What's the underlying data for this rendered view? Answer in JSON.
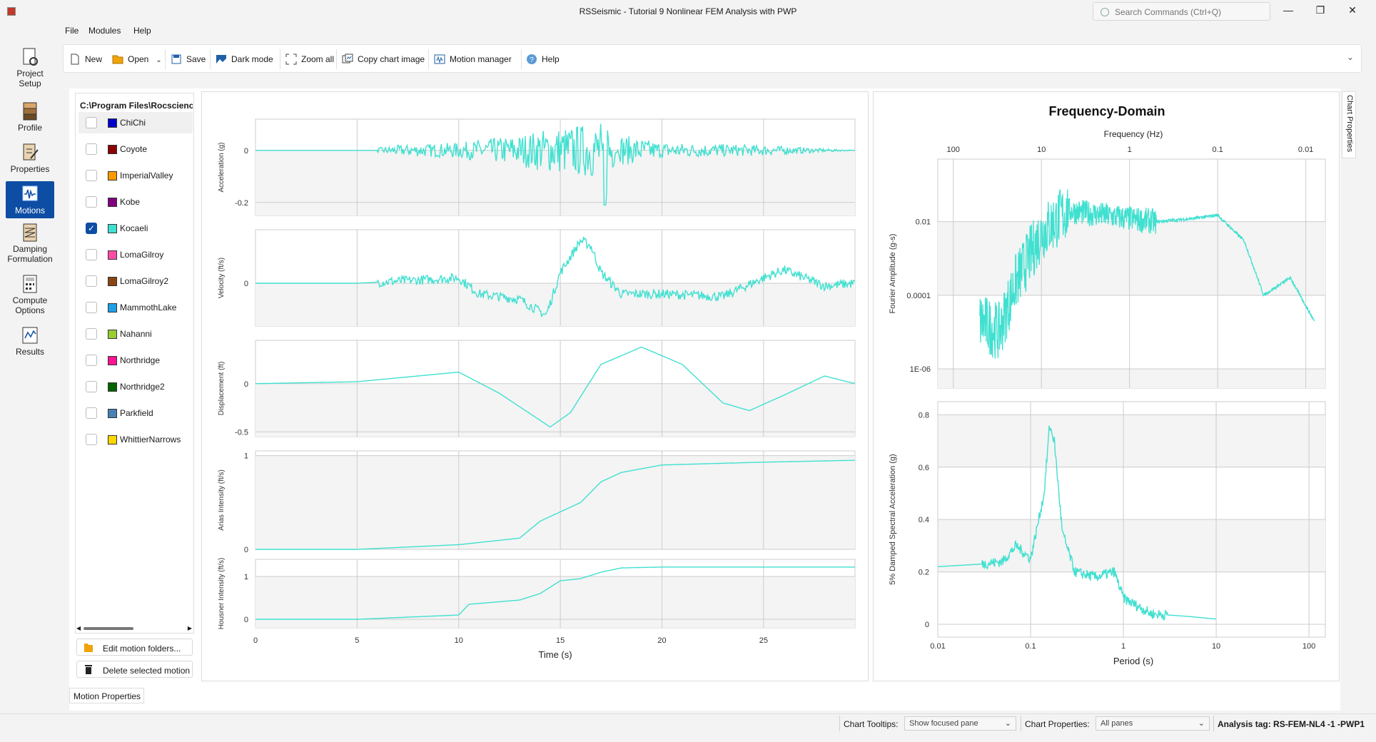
{
  "window": {
    "title": "RSSeismic - Tutorial 9 Nonlinear FEM Analysis with PWP",
    "search_placeholder": "Search Commands (Ctrl+Q)",
    "minimize": "—",
    "maximize": "❐",
    "close": "✕"
  },
  "menu": [
    "File",
    "Modules",
    "Help"
  ],
  "sidebar": [
    {
      "label": "Project\nSetup",
      "icon": "project-setup-icon"
    },
    {
      "label": "Profile",
      "icon": "profile-icon"
    },
    {
      "label": "Properties",
      "icon": "properties-icon"
    },
    {
      "label": "Motions",
      "icon": "motions-icon",
      "active": true
    },
    {
      "label": "Damping\nFormulation",
      "icon": "damping-icon"
    },
    {
      "label": "Compute\nOptions",
      "icon": "compute-icon"
    },
    {
      "label": "Results",
      "icon": "results-icon"
    }
  ],
  "toolbar": {
    "new": "New",
    "open": "Open",
    "save": "Save",
    "dark_mode": "Dark mode",
    "zoom_all": "Zoom all",
    "copy_chart": "Copy chart image",
    "motion_manager": "Motion manager",
    "help": "Help"
  },
  "motions": {
    "path": "C:\\Program Files\\Rocscience",
    "items": [
      {
        "name": "ChiChi",
        "color": "#0000cc",
        "checked": false
      },
      {
        "name": "Coyote",
        "color": "#8b0000",
        "checked": false
      },
      {
        "name": "ImperialValley",
        "color": "#ff9900",
        "checked": false
      },
      {
        "name": "Kobe",
        "color": "#800080",
        "checked": false
      },
      {
        "name": "Kocaeli",
        "color": "#40e0d0",
        "checked": true
      },
      {
        "name": "LomaGilroy",
        "color": "#ff4da6",
        "checked": false
      },
      {
        "name": "LomaGilroy2",
        "color": "#8b4513",
        "checked": false
      },
      {
        "name": "MammothLake",
        "color": "#1ea0e6",
        "checked": false
      },
      {
        "name": "Nahanni",
        "color": "#9acd32",
        "checked": false
      },
      {
        "name": "Northridge",
        "color": "#ff1493",
        "checked": false
      },
      {
        "name": "Northridge2",
        "color": "#006400",
        "checked": false
      },
      {
        "name": "Parkfield",
        "color": "#4682b4",
        "checked": false
      },
      {
        "name": "WhittierNarrows",
        "color": "#ffd700",
        "checked": false
      }
    ],
    "edit_button": "Edit motion folders...",
    "delete_button": "Delete selected motion",
    "tab_label": "Motion Properties"
  },
  "time_charts": {
    "xlabel": "Time (s)",
    "x_ticks": [
      "0",
      "5",
      "10",
      "15",
      "20",
      "25"
    ],
    "panels": [
      {
        "ylabel": "Acceleration (g)",
        "y_ticks": [
          "0",
          "-0.2"
        ]
      },
      {
        "ylabel": "Velocity (ft/s)",
        "y_ticks": [
          "0"
        ]
      },
      {
        "ylabel": "Displacement (ft)",
        "y_ticks": [
          "0",
          "-0.5"
        ]
      },
      {
        "ylabel": "Arias Intensity (ft/s)",
        "y_ticks": [
          "1",
          "0"
        ]
      },
      {
        "ylabel": "Housner Intensity (ft/s)",
        "y_ticks": [
          "1",
          "0"
        ]
      }
    ]
  },
  "freq_chart": {
    "title": "Frequency-Domain",
    "top_xlabel": "Frequency (Hz)",
    "top_x_ticks": [
      "100",
      "10",
      "1",
      "0.1",
      "0.01"
    ],
    "ylabel": "Fourier Amplitude (g-s)",
    "y_ticks": [
      "0.01",
      "0.0001",
      "1E-06"
    ]
  },
  "spectrum_chart": {
    "xlabel": "Period (s)",
    "x_ticks": [
      "0.01",
      "0.1",
      "1",
      "10",
      "100"
    ],
    "ylabel": "5% Damped Spectral Acceleration (g)",
    "y_ticks": [
      "0.8",
      "0.6",
      "0.4",
      "0.2",
      "0"
    ]
  },
  "chart_data": [
    {
      "type": "line",
      "ylabel": "Acceleration (g)",
      "xlabel": "Time (s)",
      "xlim": [
        0,
        29.5
      ],
      "ylim": [
        -0.25,
        0.12
      ],
      "x": [
        0,
        5,
        7,
        10,
        13,
        14,
        15,
        16,
        17,
        17.2,
        18,
        20,
        25,
        29.5
      ],
      "series": [
        {
          "values": [
            0,
            0,
            0.02,
            0.03,
            0.06,
            0.08,
            0.09,
            0.1,
            0.11,
            -0.21,
            0.06,
            0.03,
            0.02,
            0
          ]
        }
      ]
    },
    {
      "type": "line",
      "ylabel": "Velocity (ft/s)",
      "xlabel": "Time (s)",
      "xlim": [
        0,
        29.5
      ],
      "x": [
        0,
        5,
        10,
        11,
        13,
        14.3,
        15,
        16,
        16.5,
        17,
        18,
        20,
        23,
        25,
        26,
        28,
        29.5
      ],
      "series": [
        {
          "values": [
            0,
            0,
            0.1,
            -0.2,
            -0.3,
            -0.6,
            0.2,
            0.8,
            0.7,
            0.2,
            -0.2,
            -0.2,
            -0.25,
            0.1,
            0.25,
            -0.05,
            0
          ]
        }
      ]
    },
    {
      "type": "line",
      "ylabel": "Displacement (ft)",
      "xlabel": "Time (s)",
      "xlim": [
        0,
        29.5
      ],
      "ylim": [
        -0.55,
        0.45
      ],
      "x": [
        0,
        5,
        10,
        12,
        14.5,
        15.5,
        17,
        19,
        21,
        23,
        24.3,
        26,
        28,
        29.5
      ],
      "series": [
        {
          "values": [
            0,
            0.02,
            0.12,
            -0.1,
            -0.45,
            -0.3,
            0.2,
            0.38,
            0.2,
            -0.2,
            -0.28,
            -0.12,
            0.08,
            0
          ]
        }
      ]
    },
    {
      "type": "line",
      "ylabel": "Arias Intensity (ft/s)",
      "xlabel": "Time (s)",
      "xlim": [
        0,
        29.5
      ],
      "ylim": [
        0,
        1
      ],
      "x": [
        0,
        5,
        10,
        13,
        14,
        15,
        16,
        17,
        18,
        20,
        25,
        29.5
      ],
      "series": [
        {
          "values": [
            0,
            0,
            0.05,
            0.12,
            0.3,
            0.4,
            0.5,
            0.72,
            0.82,
            0.9,
            0.93,
            0.95
          ]
        }
      ]
    },
    {
      "type": "line",
      "ylabel": "Housner Intensity (ft/s)",
      "xlabel": "Time (s)",
      "xlim": [
        0,
        29.5
      ],
      "ylim": [
        0,
        1.3
      ],
      "x": [
        0,
        5,
        10,
        10.5,
        13,
        14,
        15,
        16,
        17,
        18,
        20,
        29.5
      ],
      "series": [
        {
          "values": [
            0,
            0,
            0.1,
            0.35,
            0.45,
            0.6,
            0.9,
            0.95,
            1.1,
            1.2,
            1.22,
            1.22
          ]
        }
      ]
    },
    {
      "type": "line",
      "title": "Frequency-Domain",
      "xlabel": "Frequency (Hz)",
      "ylabel": "Fourier Amplitude (g-s)",
      "x_scale": "log",
      "x": [
        50,
        30,
        20,
        10,
        5,
        2,
        1,
        0.5,
        0.2,
        0.1,
        0.05,
        0.03,
        0.015,
        0.008
      ],
      "series": [
        {
          "values": [
            2e-05,
            1e-05,
            0.0002,
            0.005,
            0.02,
            0.015,
            0.012,
            0.01,
            0.012,
            0.015,
            0.003,
            0.0001,
            0.0003,
            2e-05
          ]
        }
      ]
    },
    {
      "type": "line",
      "xlabel": "Period (s)",
      "ylabel": "5% Damped Spectral Acceleration (g)",
      "x_scale": "log",
      "ylim": [
        0,
        0.8
      ],
      "x": [
        0.01,
        0.03,
        0.05,
        0.07,
        0.1,
        0.14,
        0.16,
        0.18,
        0.22,
        0.3,
        0.5,
        0.8,
        1,
        2,
        5,
        10
      ],
      "series": [
        {
          "values": [
            0.22,
            0.23,
            0.24,
            0.3,
            0.25,
            0.5,
            0.76,
            0.7,
            0.35,
            0.2,
            0.18,
            0.2,
            0.1,
            0.04,
            0.03,
            0.02
          ]
        }
      ]
    }
  ]
}
